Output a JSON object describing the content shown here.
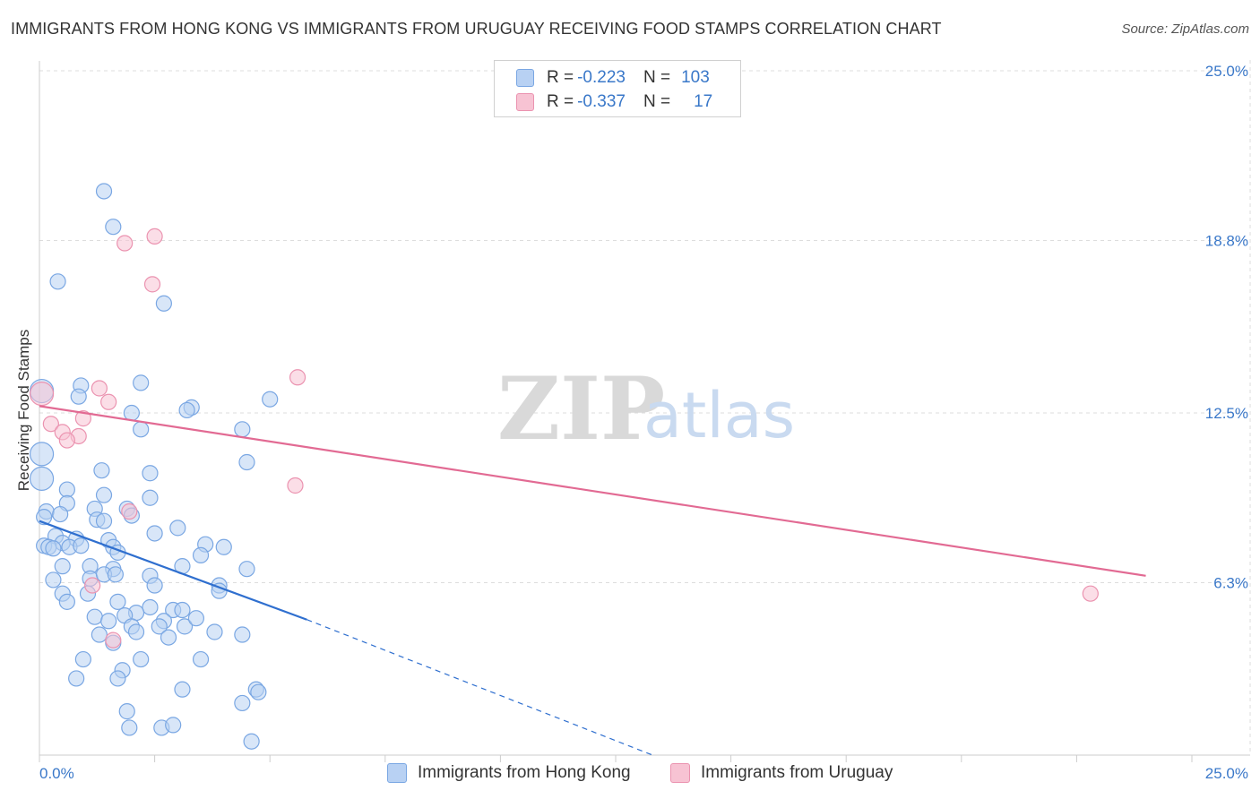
{
  "title": "IMMIGRANTS FROM HONG KONG VS IMMIGRANTS FROM URUGUAY RECEIVING FOOD STAMPS CORRELATION CHART",
  "source": "Source: ZipAtlas.com",
  "colors": {
    "blue": "#3a78c9",
    "blue_fill": "#b8d1f3",
    "blue_stroke": "#7aa7e3",
    "blue_line": "#2f6fcf",
    "pink_fill": "#f7c3d3",
    "pink_stroke": "#eb93b0",
    "pink_line": "#e26a93",
    "grid": "#dddddd"
  },
  "legend": {
    "rows": [
      {
        "r_label": "R =",
        "r_value": "-0.223",
        "n_label": "N =",
        "n_value": "103",
        "color": "blue"
      },
      {
        "r_label": "R =",
        "r_value": "-0.337",
        "n_label": "N =",
        "n_value": "17",
        "color": "pink"
      }
    ]
  },
  "bottom_legend": [
    {
      "label": "Immigrants from Hong Kong",
      "color": "blue"
    },
    {
      "label": "Immigrants from Uruguay",
      "color": "pink"
    }
  ],
  "watermark": {
    "zip": "ZIP",
    "atlas": "atlas"
  },
  "chart_data": {
    "type": "scatter",
    "title": "IMMIGRANTS FROM HONG KONG VS IMMIGRANTS FROM URUGUAY RECEIVING FOOD STAMPS CORRELATION CHART",
    "xlabel": "",
    "ylabel": "Receiving Food Stamps",
    "xlim": [
      0,
      25
    ],
    "ylim": [
      0,
      25
    ],
    "x_tick_labels": [
      "0.0%",
      "25.0%"
    ],
    "y_ticks": [
      6.3,
      12.5,
      18.8,
      25.0
    ],
    "y_tick_labels": [
      "6.3%",
      "12.5%",
      "18.8%",
      "25.0%"
    ],
    "grid": true,
    "series": [
      {
        "name": "Immigrants from Hong Kong",
        "color": "blue",
        "trend": {
          "x0": 0.0,
          "y0": 8.55,
          "x1": 5.8,
          "y1": 4.95,
          "dash_x1": 13.3,
          "dash_y1": 0.0
        },
        "points": [
          [
            0.05,
            13.3,
            2
          ],
          [
            0.05,
            11.0,
            2
          ],
          [
            0.05,
            10.1,
            2
          ],
          [
            1.4,
            20.6,
            1
          ],
          [
            1.6,
            19.3,
            1
          ],
          [
            0.4,
            17.3,
            1
          ],
          [
            2.7,
            16.5,
            1
          ],
          [
            2.2,
            13.6,
            1
          ],
          [
            0.9,
            13.5,
            1
          ],
          [
            0.85,
            13.1,
            1
          ],
          [
            3.3,
            12.7,
            1
          ],
          [
            2.0,
            12.5,
            1
          ],
          [
            3.2,
            12.6,
            1
          ],
          [
            5.0,
            13.0,
            1
          ],
          [
            2.2,
            11.9,
            1
          ],
          [
            4.4,
            11.9,
            1
          ],
          [
            4.5,
            10.7,
            1
          ],
          [
            1.35,
            10.4,
            1
          ],
          [
            2.4,
            10.3,
            1
          ],
          [
            0.6,
            9.7,
            1
          ],
          [
            1.4,
            9.5,
            1
          ],
          [
            0.6,
            9.2,
            1
          ],
          [
            2.4,
            9.4,
            1
          ],
          [
            1.2,
            9.0,
            1
          ],
          [
            1.9,
            9.0,
            1
          ],
          [
            0.15,
            8.9,
            1
          ],
          [
            0.45,
            8.8,
            1
          ],
          [
            0.1,
            8.7,
            1
          ],
          [
            2.0,
            8.75,
            1
          ],
          [
            1.25,
            8.6,
            1
          ],
          [
            1.4,
            8.55,
            1
          ],
          [
            3.0,
            8.3,
            1
          ],
          [
            2.5,
            8.1,
            1
          ],
          [
            0.35,
            8.0,
            1
          ],
          [
            0.8,
            7.9,
            1
          ],
          [
            0.5,
            7.75,
            1
          ],
          [
            1.5,
            7.85,
            1
          ],
          [
            0.1,
            7.65,
            1
          ],
          [
            0.2,
            7.6,
            1
          ],
          [
            0.3,
            7.55,
            1
          ],
          [
            0.65,
            7.6,
            1
          ],
          [
            0.9,
            7.65,
            1
          ],
          [
            1.6,
            7.6,
            1
          ],
          [
            1.7,
            7.4,
            1
          ],
          [
            3.6,
            7.7,
            1
          ],
          [
            4.0,
            7.6,
            1
          ],
          [
            3.5,
            7.3,
            1
          ],
          [
            0.5,
            6.9,
            1
          ],
          [
            1.1,
            6.9,
            1
          ],
          [
            1.6,
            6.8,
            1
          ],
          [
            3.1,
            6.9,
            1
          ],
          [
            4.5,
            6.8,
            1
          ],
          [
            0.3,
            6.4,
            1
          ],
          [
            1.1,
            6.45,
            1
          ],
          [
            1.4,
            6.6,
            1
          ],
          [
            1.65,
            6.6,
            1
          ],
          [
            2.4,
            6.55,
            1
          ],
          [
            2.5,
            6.2,
            1
          ],
          [
            3.9,
            6.2,
            1
          ],
          [
            3.9,
            6.0,
            1
          ],
          [
            0.5,
            5.9,
            1
          ],
          [
            1.05,
            5.9,
            1
          ],
          [
            0.6,
            5.6,
            1
          ],
          [
            1.7,
            5.6,
            1
          ],
          [
            2.4,
            5.4,
            1
          ],
          [
            2.1,
            5.2,
            1
          ],
          [
            2.9,
            5.3,
            1
          ],
          [
            3.1,
            5.3,
            1
          ],
          [
            1.85,
            5.1,
            1
          ],
          [
            1.2,
            5.05,
            1
          ],
          [
            2.7,
            4.9,
            1
          ],
          [
            1.5,
            4.9,
            1
          ],
          [
            2.6,
            4.7,
            1
          ],
          [
            3.15,
            4.7,
            1
          ],
          [
            3.4,
            5.0,
            1
          ],
          [
            2.0,
            4.7,
            1
          ],
          [
            2.1,
            4.5,
            1
          ],
          [
            1.3,
            4.4,
            1
          ],
          [
            2.8,
            4.3,
            1
          ],
          [
            3.8,
            4.5,
            1
          ],
          [
            4.4,
            4.4,
            1
          ],
          [
            1.6,
            4.1,
            1
          ],
          [
            0.95,
            3.5,
            1
          ],
          [
            2.2,
            3.5,
            1
          ],
          [
            3.5,
            3.5,
            1
          ],
          [
            1.8,
            3.1,
            1
          ],
          [
            1.7,
            2.8,
            1
          ],
          [
            0.8,
            2.8,
            1
          ],
          [
            3.1,
            2.4,
            1
          ],
          [
            4.7,
            2.4,
            1
          ],
          [
            4.75,
            2.3,
            1
          ],
          [
            4.4,
            1.9,
            1
          ],
          [
            1.9,
            1.6,
            1
          ],
          [
            1.95,
            1.0,
            1
          ],
          [
            2.65,
            1.0,
            1
          ],
          [
            2.9,
            1.1,
            1
          ],
          [
            4.6,
            0.5,
            1
          ]
        ]
      },
      {
        "name": "Immigrants from Uruguay",
        "color": "pink",
        "trend": {
          "x0": 0.0,
          "y0": 12.75,
          "x1": 24.0,
          "y1": 6.55
        },
        "points": [
          [
            0.05,
            13.2,
            2
          ],
          [
            1.85,
            18.7,
            1
          ],
          [
            2.5,
            18.95,
            1
          ],
          [
            2.45,
            17.2,
            1
          ],
          [
            5.6,
            13.8,
            1
          ],
          [
            1.3,
            13.4,
            1
          ],
          [
            1.5,
            12.9,
            1
          ],
          [
            0.25,
            12.1,
            1
          ],
          [
            0.95,
            12.3,
            1
          ],
          [
            0.5,
            11.8,
            1
          ],
          [
            0.85,
            11.65,
            1
          ],
          [
            0.6,
            11.5,
            1
          ],
          [
            5.55,
            9.85,
            1
          ],
          [
            1.95,
            8.9,
            1
          ],
          [
            1.15,
            6.2,
            1
          ],
          [
            1.6,
            4.2,
            1
          ],
          [
            22.8,
            5.9,
            1
          ]
        ]
      }
    ]
  }
}
